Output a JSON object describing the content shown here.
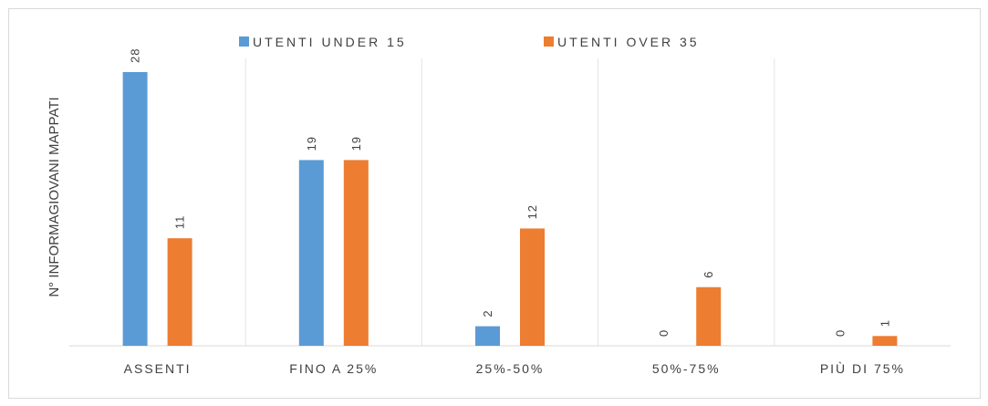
{
  "chart_data": {
    "type": "bar",
    "categories": [
      "ASSENTI",
      "FINO A 25%",
      "25%-50%",
      "50%-75%",
      "PIÙ DI 75%"
    ],
    "series": [
      {
        "name": "UTENTI UNDER 15",
        "values": [
          28,
          19,
          2,
          0,
          0
        ],
        "color": "#5b9bd5"
      },
      {
        "name": "UTENTI OVER 35",
        "values": [
          11,
          19,
          12,
          6,
          1
        ],
        "color": "#ed7d31"
      }
    ],
    "title": "",
    "xlabel": "",
    "ylabel": "N° INFORMAGIOVANI MAPPATI",
    "ylim": [
      0,
      30
    ],
    "grid": "vertical-separators",
    "legend": "top-center",
    "data_labels": true
  }
}
